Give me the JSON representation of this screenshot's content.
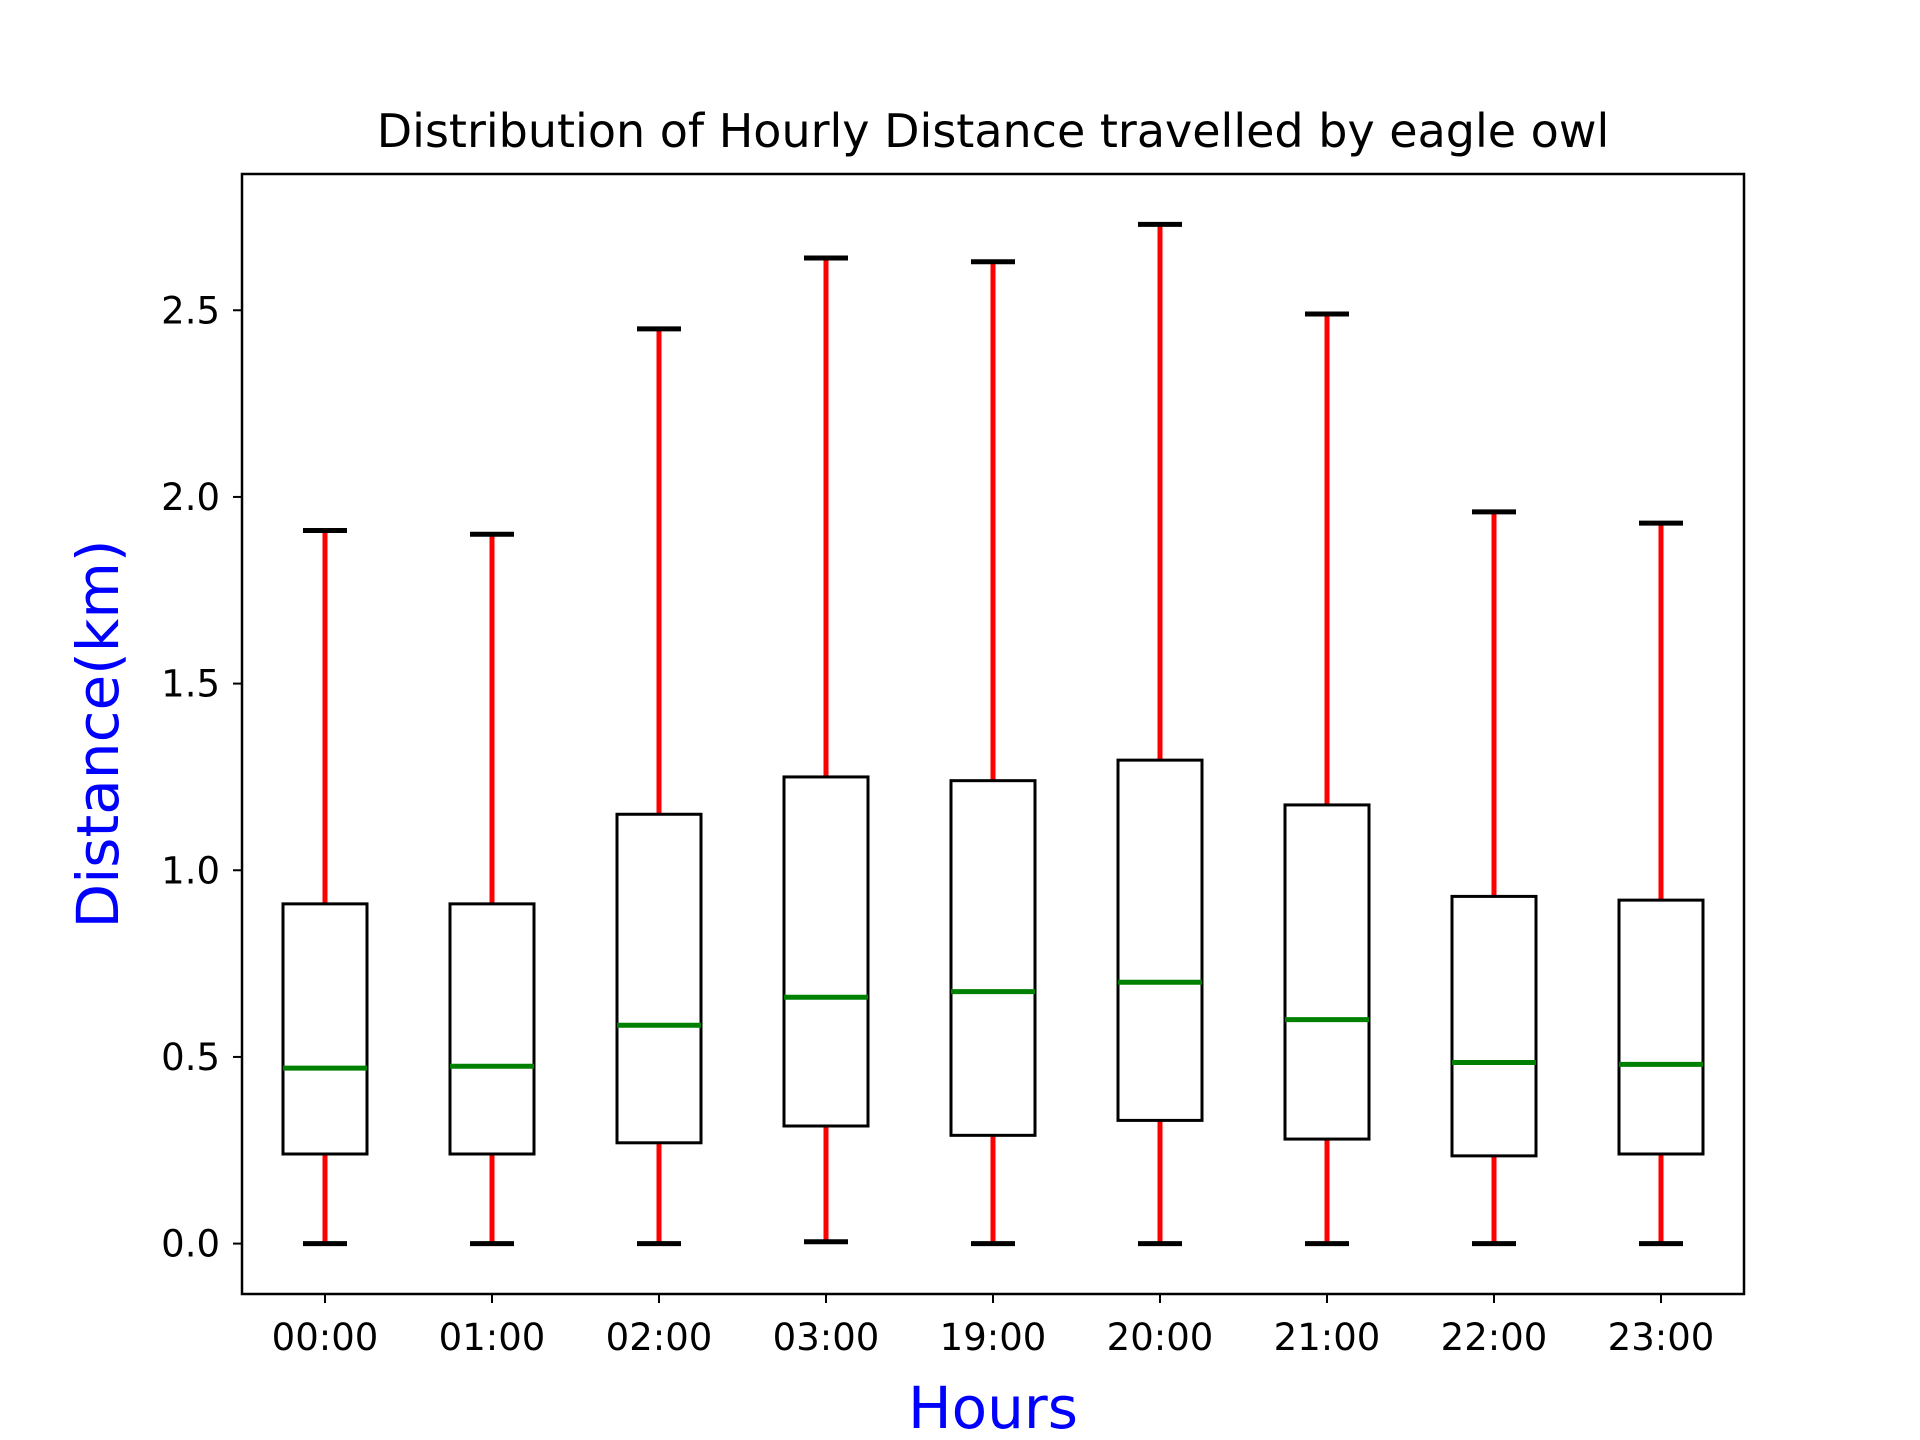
{
  "chart_data": {
    "type": "box",
    "title": "Distribution of Hourly Distance travelled by eagle owl",
    "xlabel": "Hours",
    "ylabel": "Distance(km)",
    "categories": [
      "00:00",
      "01:00",
      "02:00",
      "03:00",
      "19:00",
      "20:00",
      "21:00",
      "22:00",
      "23:00"
    ],
    "boxes": [
      {
        "min": 0.0,
        "q1": 0.24,
        "median": 0.47,
        "q3": 0.91,
        "max": 1.91
      },
      {
        "min": 0.0,
        "q1": 0.24,
        "median": 0.475,
        "q3": 0.91,
        "max": 1.9
      },
      {
        "min": 0.0,
        "q1": 0.27,
        "median": 0.585,
        "q3": 1.15,
        "max": 2.45
      },
      {
        "min": 0.005,
        "q1": 0.315,
        "median": 0.66,
        "q3": 1.25,
        "max": 2.64
      },
      {
        "min": 0.0,
        "q1": 0.29,
        "median": 0.675,
        "q3": 1.24,
        "max": 2.63
      },
      {
        "min": 0.0,
        "q1": 0.33,
        "median": 0.7,
        "q3": 1.295,
        "max": 2.73
      },
      {
        "min": 0.0,
        "q1": 0.28,
        "median": 0.6,
        "q3": 1.175,
        "max": 2.49
      },
      {
        "min": 0.0,
        "q1": 0.235,
        "median": 0.485,
        "q3": 0.93,
        "max": 1.96
      },
      {
        "min": 0.0,
        "q1": 0.24,
        "median": 0.48,
        "q3": 0.92,
        "max": 1.93
      }
    ],
    "ylim": [
      -0.135,
      2.865
    ],
    "yticks": [
      0.0,
      0.5,
      1.0,
      1.5,
      2.0,
      2.5
    ],
    "ytick_labels": [
      "0.0",
      "0.5",
      "1.0",
      "1.5",
      "2.0",
      "2.5"
    ],
    "grid": false,
    "colors": {
      "whisker": "#ff0000",
      "median": "#008000",
      "box": "#000000",
      "cap": "#000000",
      "axis_label": "#0000ff"
    }
  }
}
